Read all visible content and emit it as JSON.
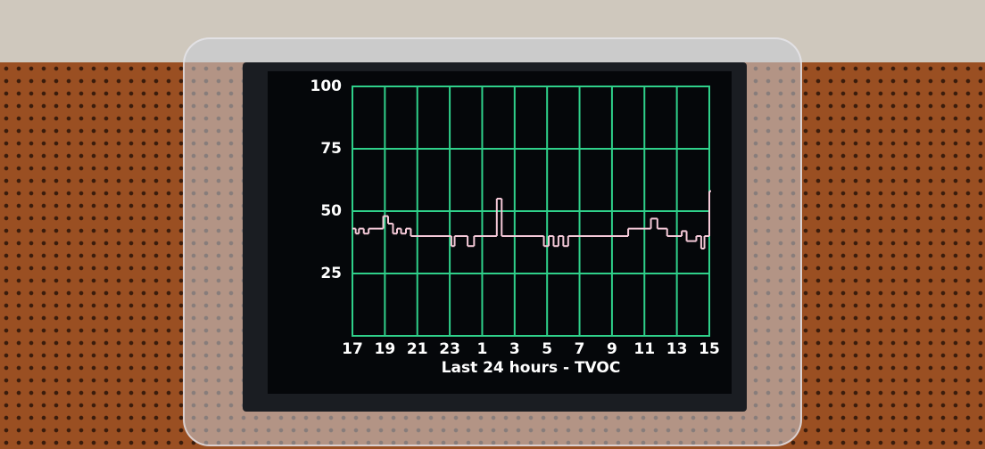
{
  "chart_data": {
    "type": "line",
    "step": "post",
    "subtitle": "Last  24 hours - TVOC",
    "x": [
      0,
      0.2,
      0.4,
      0.7,
      1.0,
      1.9,
      2.2,
      2.5,
      2.75,
      3.0,
      3.3,
      3.6,
      6.1,
      6.3,
      7.1,
      7.5,
      8.9,
      9.2,
      11.8,
      12.1,
      12.4,
      12.7,
      13.0,
      13.3,
      17.0,
      18.4,
      18.8,
      19.4,
      20.3,
      20.6,
      21.2,
      21.5,
      21.7,
      22.0
    ],
    "series": [
      {
        "color": "#f5c9d8",
        "values": [
          43,
          41,
          43,
          41,
          43,
          48,
          45,
          41,
          43,
          41,
          43,
          40,
          36,
          40,
          36,
          40,
          55,
          40,
          36,
          40,
          36,
          40,
          36,
          40,
          43,
          47,
          43,
          40,
          42,
          38,
          40,
          35,
          40,
          58
        ]
      }
    ],
    "xlim": [
      0,
      22
    ],
    "xticks": [
      {
        "value": 0,
        "label": "17"
      },
      {
        "value": 2,
        "label": "19"
      },
      {
        "value": 4,
        "label": "21"
      },
      {
        "value": 6,
        "label": "23"
      },
      {
        "value": 8,
        "label": "1"
      },
      {
        "value": 10,
        "label": "3"
      },
      {
        "value": 12,
        "label": "5"
      },
      {
        "value": 14,
        "label": "7"
      },
      {
        "value": 16,
        "label": "9"
      },
      {
        "value": 18,
        "label": "11"
      },
      {
        "value": 20,
        "label": "13"
      },
      {
        "value": 22,
        "label": "15"
      }
    ],
    "ylim": [
      0,
      100
    ],
    "yticks": [
      25,
      50,
      75,
      100
    ],
    "grid": true,
    "grid_color": "#2fd08a"
  }
}
